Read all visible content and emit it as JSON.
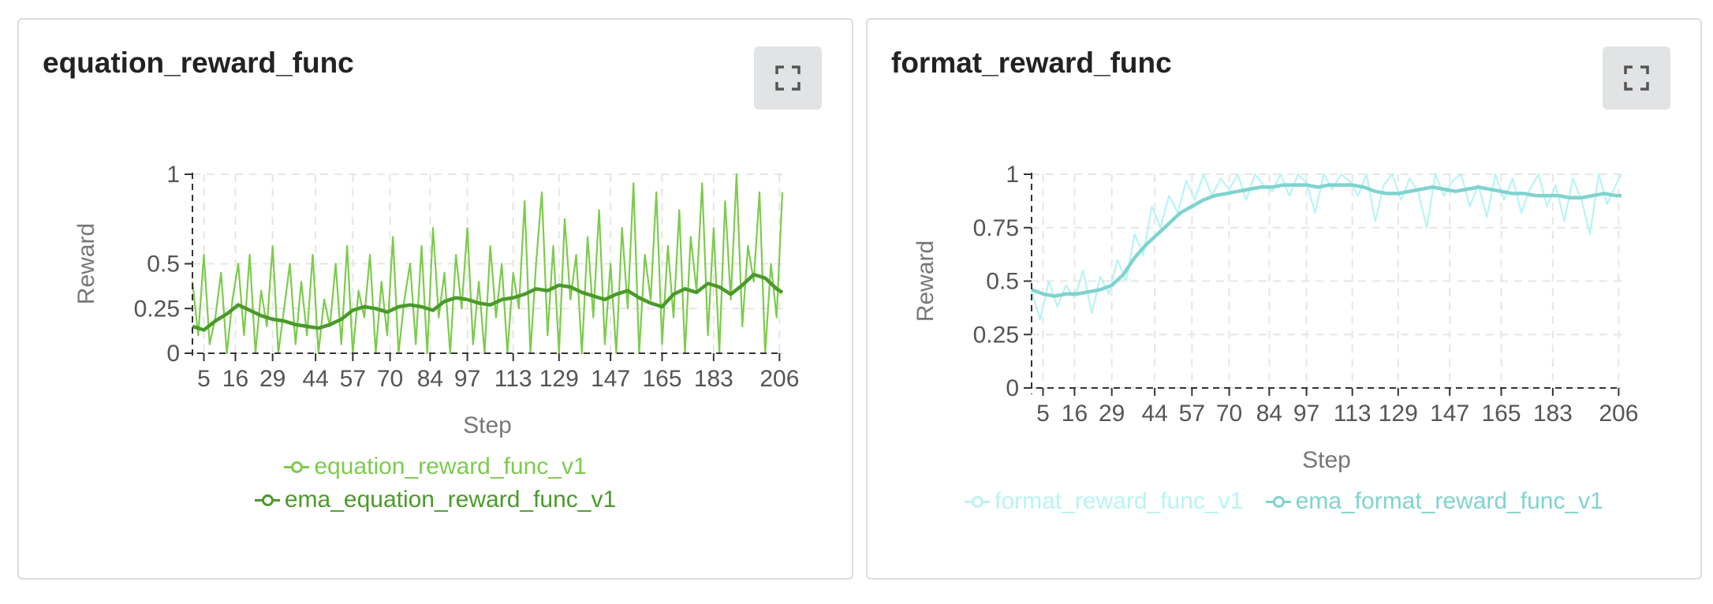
{
  "panels": [
    {
      "title": "equation_reward_func",
      "expand_icon": "expand-icon",
      "legend": [
        {
          "label": "equation_reward_func_v1",
          "color": "#7dcb4d"
        },
        {
          "label": "ema_equation_reward_func_v1",
          "color": "#4a9a2a"
        }
      ]
    },
    {
      "title": "format_reward_func",
      "expand_icon": "expand-icon",
      "legend": [
        {
          "label": "format_reward_func_v1",
          "color": "#b8f4f4"
        },
        {
          "label": "ema_format_reward_func_v1",
          "color": "#7fd3cf"
        }
      ]
    }
  ],
  "chart_data": [
    {
      "type": "line",
      "xlabel": "Step",
      "ylabel": "Reward",
      "xlim": [
        1,
        207
      ],
      "ylim": [
        0,
        1
      ],
      "y_ticks": [
        0,
        0.25,
        0.5,
        1
      ],
      "x_ticks": [
        5,
        16,
        29,
        44,
        57,
        70,
        84,
        97,
        113,
        129,
        147,
        165,
        183,
        206
      ],
      "grid": true,
      "legend_position": "bottom",
      "series": [
        {
          "name": "equation_reward_func_v1",
          "color": "#7dcb4d",
          "x": [
            1,
            3,
            5,
            7,
            9,
            11,
            13,
            15,
            17,
            19,
            21,
            23,
            25,
            27,
            29,
            31,
            33,
            35,
            37,
            39,
            41,
            43,
            45,
            47,
            49,
            51,
            53,
            55,
            57,
            59,
            61,
            63,
            65,
            67,
            69,
            71,
            73,
            75,
            77,
            79,
            81,
            83,
            85,
            87,
            89,
            91,
            93,
            95,
            97,
            99,
            101,
            103,
            105,
            107,
            109,
            111,
            113,
            115,
            117,
            119,
            121,
            123,
            125,
            127,
            129,
            131,
            133,
            135,
            137,
            139,
            141,
            143,
            145,
            147,
            149,
            151,
            153,
            155,
            157,
            159,
            161,
            163,
            165,
            167,
            169,
            171,
            173,
            175,
            177,
            179,
            181,
            183,
            185,
            187,
            189,
            191,
            193,
            195,
            197,
            199,
            201,
            203,
            205,
            207
          ],
          "y": [
            0.4,
            0.1,
            0.55,
            0.05,
            0.2,
            0.45,
            0.0,
            0.3,
            0.5,
            0.1,
            0.55,
            0.0,
            0.35,
            0.15,
            0.6,
            0.0,
            0.25,
            0.5,
            0.05,
            0.4,
            0.1,
            0.55,
            0.0,
            0.3,
            0.15,
            0.5,
            0.05,
            0.6,
            0.0,
            0.35,
            0.2,
            0.55,
            0.0,
            0.4,
            0.1,
            0.65,
            0.0,
            0.3,
            0.5,
            0.05,
            0.6,
            0.0,
            0.7,
            0.2,
            0.45,
            0.0,
            0.55,
            0.25,
            0.7,
            0.05,
            0.4,
            0.0,
            0.6,
            0.2,
            0.5,
            0.0,
            0.45,
            0.25,
            0.85,
            0.0,
            0.5,
            0.9,
            0.1,
            0.6,
            0.0,
            0.75,
            0.3,
            0.55,
            0.0,
            0.65,
            0.2,
            0.8,
            0.05,
            0.5,
            0.0,
            0.7,
            0.25,
            0.95,
            0.0,
            0.55,
            0.3,
            0.9,
            0.05,
            0.6,
            0.2,
            0.8,
            0.0,
            0.65,
            0.35,
            0.95,
            0.1,
            0.7,
            0.0,
            0.85,
            0.3,
            1.0,
            0.15,
            0.6,
            0.4,
            0.9,
            0.0,
            0.5,
            0.2,
            0.9
          ]
        },
        {
          "name": "ema_equation_reward_func_v1",
          "color": "#4a9a2a",
          "x": [
            1,
            5,
            9,
            13,
            17,
            21,
            25,
            29,
            33,
            37,
            41,
            45,
            49,
            53,
            57,
            61,
            65,
            69,
            73,
            77,
            81,
            85,
            89,
            93,
            97,
            101,
            105,
            109,
            113,
            117,
            121,
            125,
            129,
            133,
            137,
            141,
            145,
            149,
            153,
            157,
            161,
            165,
            169,
            173,
            177,
            181,
            185,
            189,
            193,
            197,
            201,
            205,
            207
          ],
          "y": [
            0.15,
            0.13,
            0.18,
            0.22,
            0.27,
            0.24,
            0.21,
            0.19,
            0.18,
            0.16,
            0.15,
            0.14,
            0.16,
            0.19,
            0.24,
            0.26,
            0.25,
            0.23,
            0.26,
            0.27,
            0.26,
            0.24,
            0.29,
            0.31,
            0.3,
            0.28,
            0.27,
            0.3,
            0.31,
            0.33,
            0.36,
            0.35,
            0.38,
            0.37,
            0.34,
            0.32,
            0.3,
            0.33,
            0.35,
            0.31,
            0.28,
            0.26,
            0.33,
            0.36,
            0.34,
            0.39,
            0.37,
            0.33,
            0.38,
            0.44,
            0.42,
            0.36,
            0.34
          ]
        }
      ]
    },
    {
      "type": "line",
      "xlabel": "Step",
      "ylabel": "Reward",
      "xlim": [
        1,
        207
      ],
      "ylim": [
        0,
        1
      ],
      "y_ticks": [
        0,
        0.25,
        0.5,
        0.75,
        1
      ],
      "x_ticks": [
        5,
        16,
        29,
        44,
        57,
        70,
        84,
        97,
        113,
        129,
        147,
        165,
        183,
        206
      ],
      "grid": true,
      "legend_position": "bottom",
      "series": [
        {
          "name": "format_reward_func_v1",
          "color": "#b8f4f4",
          "x": [
            1,
            4,
            7,
            10,
            13,
            16,
            19,
            22,
            25,
            28,
            31,
            34,
            37,
            40,
            43,
            46,
            49,
            52,
            55,
            58,
            61,
            64,
            67,
            70,
            73,
            76,
            79,
            82,
            85,
            88,
            91,
            94,
            97,
            100,
            103,
            106,
            109,
            112,
            115,
            118,
            121,
            124,
            127,
            130,
            133,
            136,
            139,
            142,
            145,
            148,
            151,
            154,
            157,
            160,
            163,
            166,
            169,
            172,
            175,
            178,
            181,
            184,
            187,
            190,
            193,
            196,
            199,
            202,
            205,
            207
          ],
          "y": [
            0.45,
            0.32,
            0.5,
            0.38,
            0.48,
            0.42,
            0.55,
            0.35,
            0.52,
            0.44,
            0.6,
            0.5,
            0.72,
            0.62,
            0.85,
            0.75,
            0.9,
            0.82,
            0.97,
            0.88,
            1.0,
            0.9,
            0.98,
            0.93,
            1.0,
            0.88,
            1.0,
            0.95,
            0.92,
            1.0,
            0.9,
            1.0,
            0.96,
            0.82,
            1.0,
            0.93,
            1.0,
            0.97,
            0.9,
            1.0,
            0.78,
            0.95,
            1.0,
            0.88,
            0.98,
            0.92,
            0.75,
            1.0,
            0.9,
            0.97,
            1.0,
            0.85,
            0.95,
            0.8,
            1.0,
            0.88,
            0.98,
            0.82,
            0.93,
            1.0,
            0.85,
            0.95,
            0.78,
            0.98,
            0.88,
            0.72,
            1.0,
            0.86,
            0.95,
            1.0
          ]
        },
        {
          "name": "ema_format_reward_func_v1",
          "color": "#7fd3cf",
          "x": [
            1,
            5,
            9,
            13,
            17,
            21,
            25,
            29,
            33,
            37,
            41,
            45,
            49,
            53,
            57,
            61,
            65,
            69,
            73,
            77,
            81,
            85,
            89,
            93,
            97,
            101,
            105,
            109,
            113,
            117,
            121,
            125,
            129,
            133,
            137,
            141,
            145,
            149,
            153,
            157,
            161,
            165,
            169,
            173,
            177,
            181,
            185,
            189,
            193,
            197,
            201,
            205,
            207
          ],
          "y": [
            0.46,
            0.44,
            0.43,
            0.44,
            0.44,
            0.45,
            0.46,
            0.48,
            0.53,
            0.61,
            0.67,
            0.72,
            0.77,
            0.82,
            0.85,
            0.88,
            0.9,
            0.91,
            0.92,
            0.93,
            0.94,
            0.94,
            0.95,
            0.95,
            0.95,
            0.94,
            0.95,
            0.95,
            0.95,
            0.94,
            0.92,
            0.91,
            0.91,
            0.92,
            0.93,
            0.94,
            0.93,
            0.92,
            0.93,
            0.94,
            0.93,
            0.92,
            0.91,
            0.91,
            0.9,
            0.9,
            0.9,
            0.89,
            0.89,
            0.9,
            0.91,
            0.9,
            0.9
          ]
        }
      ]
    }
  ]
}
